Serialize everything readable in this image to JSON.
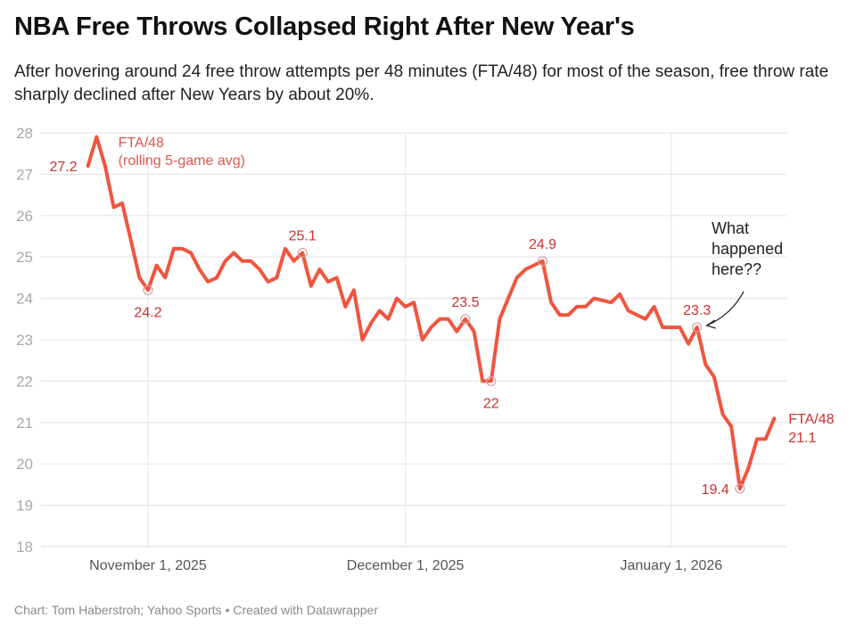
{
  "header": {
    "title": "NBA Free Throws Collapsed Right After New Year's",
    "subtitle": "After hovering around 24 free throw attempts per 48 minutes (FTA/48) for most of the season, free throw rate sharply declined after New Years by about 20%."
  },
  "footer": {
    "credit": "Chart: Tom Haberstroh; Yahoo Sports • Created with Datawrapper"
  },
  "colors": {
    "line": "#f0553f",
    "label": "#c9302c",
    "grid": "#e6e6e6",
    "axis_text": "#a8a8a8",
    "annotation": "#222222"
  },
  "chart_data": {
    "type": "line",
    "title": "NBA Free Throws Collapsed Right After New Year's",
    "xlabel": "",
    "ylabel": "",
    "ylim": [
      18,
      28
    ],
    "yticks": [
      18,
      19,
      20,
      21,
      22,
      23,
      24,
      25,
      26,
      27,
      28
    ],
    "xticks": [
      {
        "date": "2025-11-01",
        "label": "November 1, 2025"
      },
      {
        "date": "2025-12-01",
        "label": "December 1, 2025"
      },
      {
        "date": "2026-01-01",
        "label": "January 1, 2026"
      }
    ],
    "grid": true,
    "legend": "none",
    "series": [
      {
        "name": "FTA/48 (rolling 5-game avg)",
        "start_label": "FTA/48",
        "start_sublabel": "(rolling 5-game avg)",
        "end_label": "FTA/48",
        "end_value_label": "21.1",
        "points": [
          {
            "date": "2025-10-25",
            "value": 27.2
          },
          {
            "date": "2025-10-26",
            "value": 27.9
          },
          {
            "date": "2025-10-27",
            "value": 27.2
          },
          {
            "date": "2025-10-28",
            "value": 26.2
          },
          {
            "date": "2025-10-29",
            "value": 26.3
          },
          {
            "date": "2025-10-30",
            "value": 25.4
          },
          {
            "date": "2025-10-31",
            "value": 24.5
          },
          {
            "date": "2025-11-01",
            "value": 24.2
          },
          {
            "date": "2025-11-02",
            "value": 24.8
          },
          {
            "date": "2025-11-03",
            "value": 24.5
          },
          {
            "date": "2025-11-04",
            "value": 25.2
          },
          {
            "date": "2025-11-05",
            "value": 25.2
          },
          {
            "date": "2025-11-06",
            "value": 25.1
          },
          {
            "date": "2025-11-07",
            "value": 24.7
          },
          {
            "date": "2025-11-08",
            "value": 24.4
          },
          {
            "date": "2025-11-09",
            "value": 24.5
          },
          {
            "date": "2025-11-10",
            "value": 24.9
          },
          {
            "date": "2025-11-11",
            "value": 25.1
          },
          {
            "date": "2025-11-12",
            "value": 24.9
          },
          {
            "date": "2025-11-13",
            "value": 24.9
          },
          {
            "date": "2025-11-14",
            "value": 24.7
          },
          {
            "date": "2025-11-15",
            "value": 24.4
          },
          {
            "date": "2025-11-16",
            "value": 24.5
          },
          {
            "date": "2025-11-17",
            "value": 25.2
          },
          {
            "date": "2025-11-18",
            "value": 24.9
          },
          {
            "date": "2025-11-19",
            "value": 25.1
          },
          {
            "date": "2025-11-20",
            "value": 24.3
          },
          {
            "date": "2025-11-21",
            "value": 24.7
          },
          {
            "date": "2025-11-22",
            "value": 24.4
          },
          {
            "date": "2025-11-23",
            "value": 24.5
          },
          {
            "date": "2025-11-24",
            "value": 23.8
          },
          {
            "date": "2025-11-25",
            "value": 24.2
          },
          {
            "date": "2025-11-26",
            "value": 23.0
          },
          {
            "date": "2025-11-27",
            "value": 23.4
          },
          {
            "date": "2025-11-28",
            "value": 23.7
          },
          {
            "date": "2025-11-29",
            "value": 23.5
          },
          {
            "date": "2025-11-30",
            "value": 24.0
          },
          {
            "date": "2025-12-01",
            "value": 23.8
          },
          {
            "date": "2025-12-02",
            "value": 23.9
          },
          {
            "date": "2025-12-03",
            "value": 23.0
          },
          {
            "date": "2025-12-04",
            "value": 23.3
          },
          {
            "date": "2025-12-05",
            "value": 23.5
          },
          {
            "date": "2025-12-06",
            "value": 23.5
          },
          {
            "date": "2025-12-07",
            "value": 23.2
          },
          {
            "date": "2025-12-08",
            "value": 23.5
          },
          {
            "date": "2025-12-09",
            "value": 23.2
          },
          {
            "date": "2025-12-10",
            "value": 22.0
          },
          {
            "date": "2025-12-11",
            "value": 22.0
          },
          {
            "date": "2025-12-12",
            "value": 23.5
          },
          {
            "date": "2025-12-13",
            "value": 24.0
          },
          {
            "date": "2025-12-14",
            "value": 24.5
          },
          {
            "date": "2025-12-15",
            "value": 24.7
          },
          {
            "date": "2025-12-16",
            "value": 24.8
          },
          {
            "date": "2025-12-17",
            "value": 24.9
          },
          {
            "date": "2025-12-18",
            "value": 23.9
          },
          {
            "date": "2025-12-19",
            "value": 23.6
          },
          {
            "date": "2025-12-20",
            "value": 23.6
          },
          {
            "date": "2025-12-21",
            "value": 23.8
          },
          {
            "date": "2025-12-22",
            "value": 23.8
          },
          {
            "date": "2025-12-23",
            "value": 24.0
          },
          {
            "date": "2025-12-24",
            "value": 23.95
          },
          {
            "date": "2025-12-25",
            "value": 23.9
          },
          {
            "date": "2025-12-26",
            "value": 24.1
          },
          {
            "date": "2025-12-27",
            "value": 23.7
          },
          {
            "date": "2025-12-28",
            "value": 23.6
          },
          {
            "date": "2025-12-29",
            "value": 23.5
          },
          {
            "date": "2025-12-30",
            "value": 23.8
          },
          {
            "date": "2025-12-31",
            "value": 23.3
          },
          {
            "date": "2026-01-01",
            "value": 23.3
          },
          {
            "date": "2026-01-02",
            "value": 23.3
          },
          {
            "date": "2026-01-03",
            "value": 22.9
          },
          {
            "date": "2026-01-04",
            "value": 23.3
          },
          {
            "date": "2026-01-05",
            "value": 22.4
          },
          {
            "date": "2026-01-06",
            "value": 22.1
          },
          {
            "date": "2026-01-07",
            "value": 21.2
          },
          {
            "date": "2026-01-08",
            "value": 20.9
          },
          {
            "date": "2026-01-09",
            "value": 19.4
          },
          {
            "date": "2026-01-10",
            "value": 19.9
          },
          {
            "date": "2026-01-11",
            "value": 20.6
          },
          {
            "date": "2026-01-12",
            "value": 20.6
          },
          {
            "date": "2026-01-13",
            "value": 21.1
          }
        ]
      }
    ],
    "data_labels": [
      {
        "date": "2025-10-25",
        "value": 27.2,
        "text": "27.2",
        "position": "left",
        "marker": false
      },
      {
        "date": "2025-11-01",
        "value": 24.2,
        "text": "24.2",
        "position": "below",
        "marker": true
      },
      {
        "date": "2025-11-19",
        "value": 25.1,
        "text": "25.1",
        "position": "above",
        "marker": true
      },
      {
        "date": "2025-12-08",
        "value": 23.5,
        "text": "23.5",
        "position": "above",
        "marker": true
      },
      {
        "date": "2025-12-11",
        "value": 22.0,
        "text": "22",
        "position": "below",
        "marker": true
      },
      {
        "date": "2025-12-17",
        "value": 24.9,
        "text": "24.9",
        "position": "above",
        "marker": true
      },
      {
        "date": "2026-01-04",
        "value": 23.3,
        "text": "23.3",
        "position": "above",
        "marker": true
      },
      {
        "date": "2026-01-09",
        "value": 19.4,
        "text": "19.4",
        "position": "left",
        "marker": true
      }
    ],
    "annotations": [
      {
        "lines": [
          "What",
          "happened",
          "here??"
        ],
        "points_to": {
          "date": "2026-01-04",
          "value": 23.3
        }
      }
    ]
  }
}
